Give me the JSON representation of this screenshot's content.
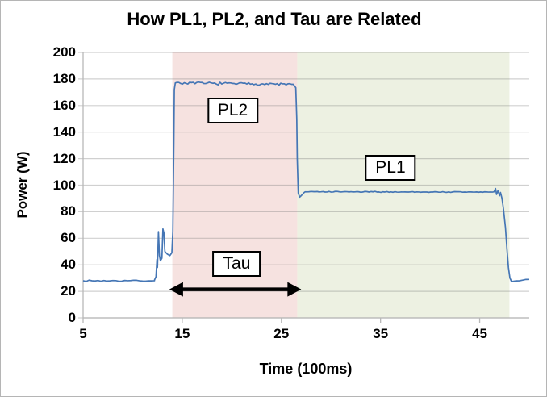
{
  "chart_data": {
    "type": "line",
    "title": "How PL1, PL2, and Tau are Related",
    "xlabel": "Time (100ms)",
    "ylabel": "Power (W)",
    "xlim": [
      5,
      50
    ],
    "ylim": [
      0,
      200
    ],
    "xticks": [
      5,
      15,
      25,
      35,
      45
    ],
    "yticks": [
      0,
      20,
      40,
      60,
      80,
      100,
      120,
      140,
      160,
      180,
      200
    ],
    "grid": "horizontal",
    "legend": "none",
    "colors": {
      "line": "#4576b5",
      "tau_region_fill": "#f6e2e0",
      "pl1_region_fill": "#edf1e2",
      "gridline": "rgba(120,120,120,0.35)",
      "axis": "#b8b8b8",
      "annotation_border": "#000000",
      "annotation_fill": "#ffffff",
      "arrow": "#000000",
      "text": "#000000"
    },
    "regions": [
      {
        "name": "tau-window",
        "x0": 14.0,
        "x1": 26.6,
        "color": "#f6e2e0"
      },
      {
        "name": "pl1-window",
        "x0": 26.6,
        "x1": 48.0,
        "color": "#edf1e2"
      }
    ],
    "series": [
      {
        "name": "package-power",
        "color": "#4576b5",
        "summary": {
          "idle_w": 28,
          "pl2_plateau_w": 177,
          "pl1_plateau_w": 95,
          "pl2_start_t": 14.2,
          "pl2_end_t": 26.5,
          "pl1_end_t": 47.3,
          "idle_return_t": 48.2
        },
        "segments": [
          {
            "kind": "noisy",
            "from": [
              5.0,
              28.0
            ],
            "to": [
              12.2,
              28.0
            ],
            "amp": 0.6,
            "step": 0.3
          },
          {
            "kind": "points",
            "pts": [
              [
                12.2,
                28.5
              ],
              [
                12.35,
                31
              ],
              [
                12.45,
                44
              ],
              [
                12.5,
                38
              ],
              [
                12.6,
                65
              ],
              [
                12.7,
                47
              ],
              [
                12.8,
                43
              ],
              [
                12.95,
                45
              ],
              [
                13.05,
                67
              ],
              [
                13.15,
                64
              ],
              [
                13.25,
                50
              ],
              [
                13.5,
                48
              ],
              [
                13.75,
                47
              ],
              [
                13.95,
                49
              ],
              [
                14.05,
                65
              ],
              [
                14.15,
                130
              ],
              [
                14.2,
                172
              ]
            ]
          },
          {
            "kind": "noisy",
            "from": [
              14.3,
              177.0
            ],
            "to": [
              26.2,
              176.0
            ],
            "amp": 1.1,
            "step": 0.18
          },
          {
            "kind": "points",
            "pts": [
              [
                26.3,
                175
              ],
              [
                26.45,
                173.5
              ],
              [
                26.55,
                150
              ],
              [
                26.6,
                120
              ],
              [
                26.7,
                94
              ],
              [
                26.85,
                91
              ],
              [
                27.05,
                92.5
              ],
              [
                27.3,
                94.5
              ]
            ]
          },
          {
            "kind": "noisy",
            "from": [
              27.4,
              95.0
            ],
            "to": [
              46.3,
              94.8
            ],
            "amp": 0.45,
            "step": 0.2
          },
          {
            "kind": "points",
            "pts": [
              [
                46.45,
                95
              ],
              [
                46.6,
                97.5
              ],
              [
                46.7,
                93
              ],
              [
                46.85,
                96
              ],
              [
                47.0,
                92
              ],
              [
                47.1,
                94.5
              ],
              [
                47.25,
                90
              ],
              [
                47.4,
                82
              ],
              [
                47.6,
                68
              ],
              [
                47.75,
                52
              ],
              [
                47.9,
                38
              ],
              [
                48.05,
                30
              ],
              [
                48.2,
                27.5
              ]
            ]
          },
          {
            "kind": "noisy",
            "from": [
              48.35,
              27.5
            ],
            "to": [
              50.0,
              29.0
            ],
            "amp": 0.5,
            "step": 0.3
          }
        ]
      }
    ],
    "annotations": {
      "boxes": [
        {
          "id": "pl2",
          "label": "PL2",
          "x": 20.1,
          "y": 156
        },
        {
          "id": "pl1",
          "label": "PL1",
          "x": 36.0,
          "y": 113
        },
        {
          "id": "tau",
          "label": "Tau",
          "x": 20.5,
          "y": 41
        }
      ],
      "arrow": {
        "name": "tau-span-arrow",
        "x0": 13.7,
        "x1": 27.0,
        "y": 21.5
      }
    }
  }
}
